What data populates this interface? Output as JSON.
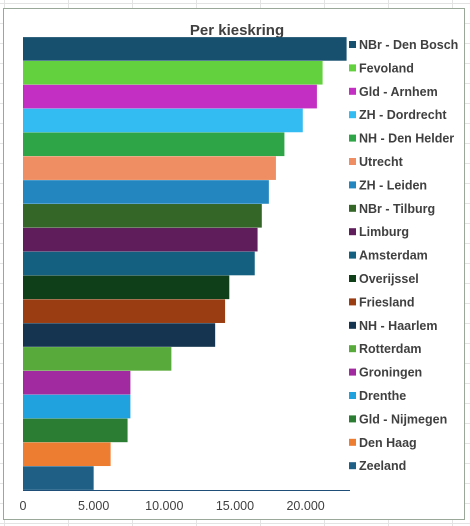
{
  "chart_data": {
    "type": "bar",
    "orientation": "horizontal",
    "title": "Per kieskring",
    "xlabel": "",
    "ylabel": "",
    "xlim": [
      0,
      23000
    ],
    "x_ticks": [
      0,
      5000,
      10000,
      15000,
      20000
    ],
    "x_tick_labels": [
      "0",
      "5.000",
      "10.000",
      "15.000",
      "20.000"
    ],
    "grid": false,
    "legend_position": "right",
    "series": [
      {
        "name": "NBr - Den Bosch",
        "value": 22900,
        "color": "#174f6e"
      },
      {
        "name": "Fevoland",
        "value": 21200,
        "color": "#62d13d"
      },
      {
        "name": "Gld - Arnhem",
        "value": 20800,
        "color": "#c22fc2"
      },
      {
        "name": "ZH - Dordrecht",
        "value": 19800,
        "color": "#33bcf1"
      },
      {
        "name": "NH - Den Helder",
        "value": 18500,
        "color": "#2ea647"
      },
      {
        "name": "Utrecht",
        "value": 17900,
        "color": "#ee8e62"
      },
      {
        "name": "ZH - Leiden",
        "value": 17400,
        "color": "#2486bf"
      },
      {
        "name": "NBr - Tilburg",
        "value": 16900,
        "color": "#346628"
      },
      {
        "name": "Limburg",
        "value": 16600,
        "color": "#5f1d5c"
      },
      {
        "name": "Amsterdam",
        "value": 16400,
        "color": "#136080"
      },
      {
        "name": "Overijssel",
        "value": 14600,
        "color": "#0f3f18"
      },
      {
        "name": "Friesland",
        "value": 14300,
        "color": "#9a3d12"
      },
      {
        "name": "NH - Haarlem",
        "value": 13600,
        "color": "#15344f"
      },
      {
        "name": "Rotterdam",
        "value": 10500,
        "color": "#58ab3a"
      },
      {
        "name": "Groningen",
        "value": 7600,
        "color": "#a22aa0"
      },
      {
        "name": "Drenthe",
        "value": 7600,
        "color": "#20a2df"
      },
      {
        "name": "Gld - Nijmegen",
        "value": 7400,
        "color": "#2a7d33"
      },
      {
        "name": "Den Haag",
        "value": 6200,
        "color": "#ec7d31"
      },
      {
        "name": "Zeeland",
        "value": 5000,
        "color": "#1f5f86"
      }
    ]
  }
}
